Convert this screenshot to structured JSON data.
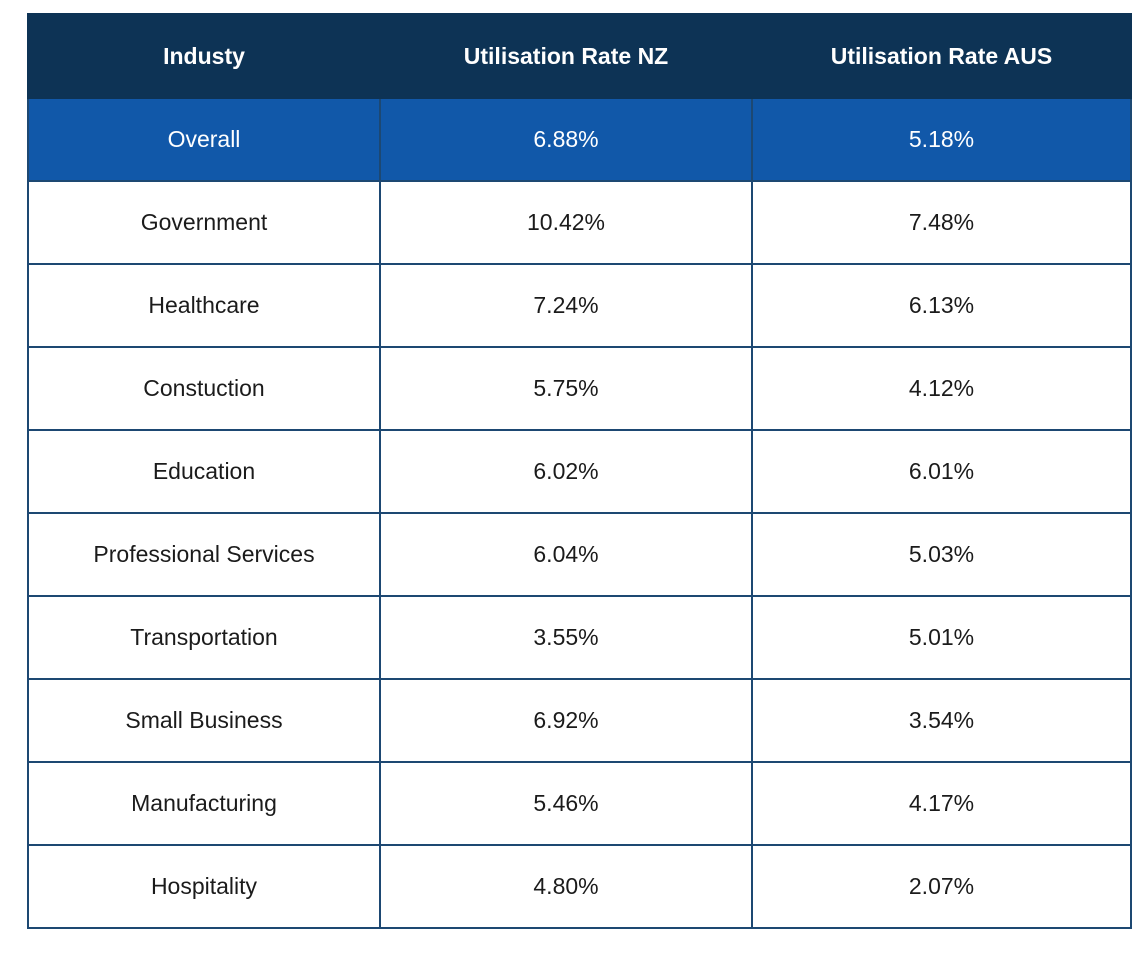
{
  "table": {
    "columns": [
      "Industy",
      "Utilisation Rate NZ",
      "Utilisation Rate AUS"
    ],
    "rows": [
      {
        "industry": "Overall",
        "nz": "6.88%",
        "aus": "5.18%",
        "highlight": true
      },
      {
        "industry": "Government",
        "nz": "10.42%",
        "aus": "7.48%",
        "highlight": false
      },
      {
        "industry": "Healthcare",
        "nz": "7.24%",
        "aus": "6.13%",
        "highlight": false
      },
      {
        "industry": "Constuction",
        "nz": "5.75%",
        "aus": "4.12%",
        "highlight": false
      },
      {
        "industry": "Education",
        "nz": "6.02%",
        "aus": "6.01%",
        "highlight": false
      },
      {
        "industry": "Professional Services",
        "nz": "6.04%",
        "aus": "5.03%",
        "highlight": false
      },
      {
        "industry": "Transportation",
        "nz": "3.55%",
        "aus": "5.01%",
        "highlight": false
      },
      {
        "industry": "Small Business",
        "nz": "6.92%",
        "aus": "3.54%",
        "highlight": false
      },
      {
        "industry": "Manufacturing",
        "nz": "5.46%",
        "aus": "4.17%",
        "highlight": false
      },
      {
        "industry": "Hospitality",
        "nz": "4.80%",
        "aus": "2.07%",
        "highlight": false
      }
    ]
  },
  "colors": {
    "header_bg": "#0d3355",
    "header_text": "#ffffff",
    "highlight_row_bg": "#1158a9",
    "highlight_row_text": "#ffffff",
    "body_text": "#1b1b1b",
    "border": "#1d4872",
    "page_bg": "#ffffff"
  },
  "chart_data": {
    "type": "table",
    "title": "",
    "columns": [
      "Industy",
      "Utilisation Rate NZ",
      "Utilisation Rate AUS"
    ],
    "categories": [
      "Overall",
      "Government",
      "Healthcare",
      "Constuction",
      "Education",
      "Professional Services",
      "Transportation",
      "Small Business",
      "Manufacturing",
      "Hospitality"
    ],
    "series": [
      {
        "name": "Utilisation Rate NZ",
        "values": [
          6.88,
          10.42,
          7.24,
          5.75,
          6.02,
          6.04,
          3.55,
          6.92,
          5.46,
          4.8
        ]
      },
      {
        "name": "Utilisation Rate AUS",
        "values": [
          5.18,
          7.48,
          6.13,
          4.12,
          6.01,
          5.03,
          5.01,
          3.54,
          4.17,
          2.07
        ]
      }
    ],
    "value_format": "percent",
    "highlighted_row": "Overall",
    "legend_position": "none",
    "grid": true
  }
}
